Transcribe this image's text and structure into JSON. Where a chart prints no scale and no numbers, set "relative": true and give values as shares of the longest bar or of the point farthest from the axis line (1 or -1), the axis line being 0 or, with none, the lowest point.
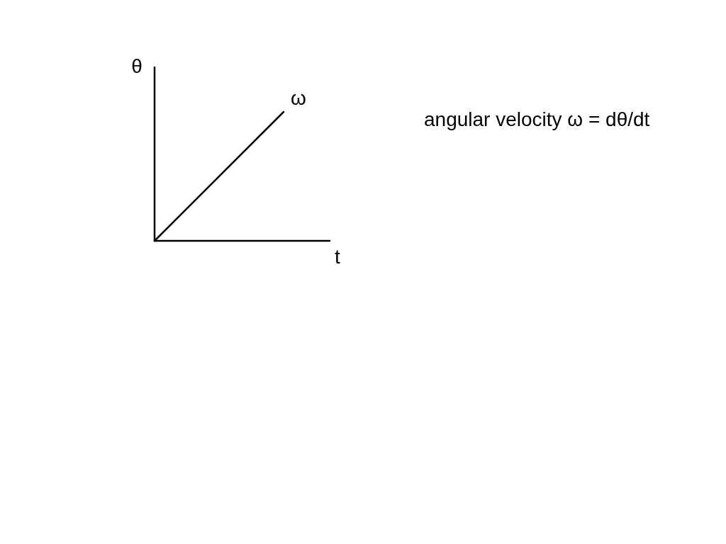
{
  "chart_data": {
    "type": "line",
    "relative": true,
    "ylabel": "θ",
    "xlabel": "t",
    "categories": [
      null,
      null
    ],
    "series": [
      {
        "name": "ω",
        "color": "#000000",
        "values": [
          0,
          1
        ]
      }
    ],
    "annotations": [
      "angular velocity ω = dθ/dt"
    ]
  }
}
